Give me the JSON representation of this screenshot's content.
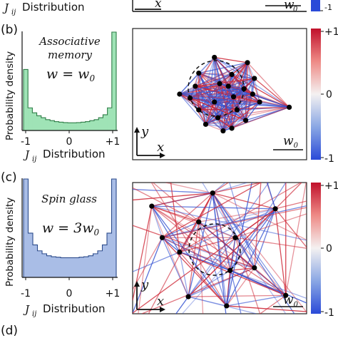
{
  "chart_data": [
    {
      "panel": "(b)",
      "type": "bar",
      "ylabel": "Probability density",
      "xlabel": "J_ij Distribution",
      "x_ticks": [
        "-1",
        "0",
        "+1"
      ],
      "xlim": [
        -1,
        1
      ],
      "annotation_lines": [
        "Associative",
        "memory"
      ],
      "equation": "w = w0",
      "bar_color": "#9fe3b6",
      "edge_color": "#2f7d47",
      "values": [
        0.62,
        0.23,
        0.18,
        0.15,
        0.13,
        0.11,
        0.1,
        0.09,
        0.085,
        0.08,
        0.078,
        0.078,
        0.08,
        0.085,
        0.09,
        0.1,
        0.11,
        0.13,
        0.16,
        0.23,
        1.0
      ]
    },
    {
      "panel": "(c)",
      "type": "bar",
      "ylabel": "Probability density",
      "xlabel": "J_ij Distribution",
      "x_ticks": [
        "-1",
        "0",
        "+1"
      ],
      "xlim": [
        -1,
        1
      ],
      "annotation_lines": [
        "Spin glass"
      ],
      "equation": "w = 3w0",
      "bar_color": "#a9bde6",
      "edge_color": "#2c4c8c",
      "values": [
        1.0,
        0.45,
        0.33,
        0.27,
        0.24,
        0.22,
        0.21,
        0.205,
        0.2,
        0.2,
        0.2,
        0.2,
        0.205,
        0.21,
        0.22,
        0.24,
        0.27,
        0.33,
        0.45,
        1.0
      ]
    }
  ],
  "network_panels": [
    {
      "panel": "(b)",
      "axis_x": "x",
      "axis_y": "y",
      "scale_label": "w0",
      "colorbar_ticks": [
        "+1",
        "0",
        "-1"
      ],
      "nodes": [
        [
          0.38,
          0.66
        ],
        [
          0.47,
          0.78
        ],
        [
          0.57,
          0.65
        ],
        [
          0.66,
          0.74
        ],
        [
          0.7,
          0.62
        ],
        [
          0.69,
          0.5
        ],
        [
          0.6,
          0.38
        ],
        [
          0.49,
          0.32
        ],
        [
          0.38,
          0.38
        ],
        [
          0.33,
          0.47
        ],
        [
          0.36,
          0.56
        ],
        [
          0.55,
          0.56
        ],
        [
          0.64,
          0.54
        ],
        [
          0.58,
          0.48
        ],
        [
          0.47,
          0.44
        ],
        [
          0.5,
          0.58
        ],
        [
          0.52,
          0.22
        ],
        [
          0.65,
          0.3
        ],
        [
          0.42,
          0.27
        ],
        [
          0.73,
          0.44
        ],
        [
          0.9,
          0.4
        ],
        [
          0.27,
          0.5
        ],
        [
          0.57,
          0.24
        ]
      ]
    },
    {
      "panel": "(c)",
      "axis_x": "x",
      "axis_y": "y",
      "scale_label": "w0",
      "colorbar_ticks": [
        "+1",
        "0",
        "-1"
      ],
      "nodes": [
        [
          0.38,
          0.7
        ],
        [
          0.46,
          0.92
        ],
        [
          0.82,
          0.8
        ],
        [
          0.7,
          0.35
        ],
        [
          0.56,
          0.33
        ],
        [
          0.17,
          0.58
        ],
        [
          0.11,
          0.82
        ],
        [
          0.54,
          0.06
        ],
        [
          0.88,
          0.14
        ],
        [
          0.59,
          0.58
        ],
        [
          0.27,
          0.47
        ],
        [
          0.32,
          0.13
        ]
      ]
    }
  ],
  "panel_labels": [
    "(b)",
    "(c)",
    "(d)"
  ],
  "top_strip": {
    "text_left": "J_ij Distribution",
    "axis_x": "x",
    "scale_label": "w0"
  }
}
